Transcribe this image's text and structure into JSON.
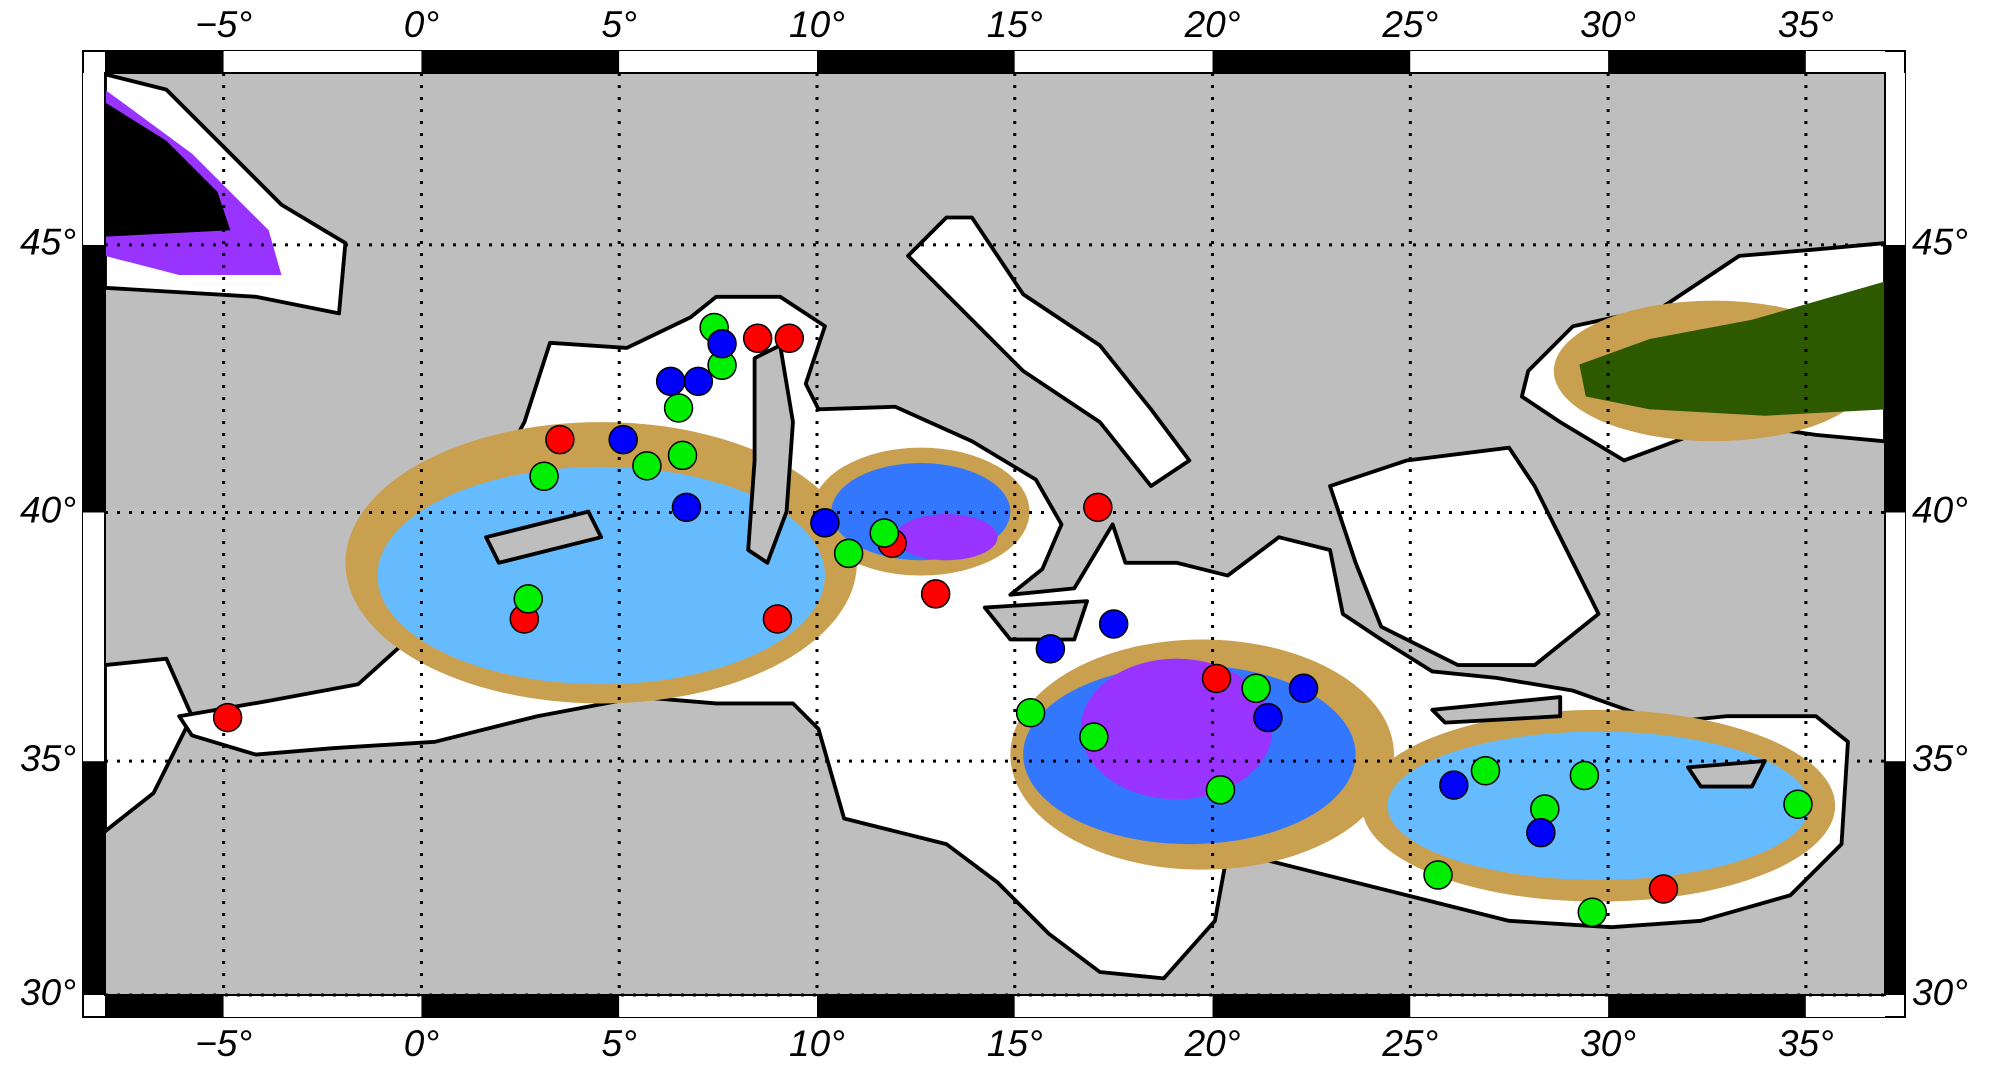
{
  "chart_data": {
    "type": "scatter",
    "projection": "mercator",
    "xlim": [
      -8,
      37
    ],
    "ylim": [
      30,
      48
    ],
    "xticks": [
      {
        "value": -5,
        "label": "−5°"
      },
      {
        "value": 0,
        "label": "0°"
      },
      {
        "value": 5,
        "label": "5°"
      },
      {
        "value": 10,
        "label": "10°"
      },
      {
        "value": 15,
        "label": "15°"
      },
      {
        "value": 20,
        "label": "20°"
      },
      {
        "value": 25,
        "label": "25°"
      },
      {
        "value": 30,
        "label": "30°"
      },
      {
        "value": 35,
        "label": "35°"
      }
    ],
    "yticks": [
      {
        "value": 30,
        "label": "30°"
      },
      {
        "value": 35,
        "label": "35°"
      },
      {
        "value": 40,
        "label": "40°"
      },
      {
        "value": 45,
        "label": "45°"
      }
    ],
    "grid": true,
    "series": [
      {
        "color": "#ff0000",
        "x": [
          -4.9,
          2.6,
          3.5,
          8.5,
          9.3,
          9.0,
          11.9,
          13.0,
          17.1,
          20.1,
          31.4
        ],
        "values": [
          35.9,
          37.9,
          41.4,
          43.3,
          43.3,
          37.9,
          39.4,
          38.4,
          40.1,
          36.7,
          32.3
        ]
      },
      {
        "color": "#00ee00",
        "x": [
          7.4,
          7.6,
          6.5,
          6.6,
          5.7,
          3.1,
          2.7,
          10.8,
          11.7,
          15.4,
          17.0,
          20.2,
          21.1,
          25.7,
          26.9,
          28.4,
          29.4,
          29.6,
          34.8
        ],
        "values": [
          43.5,
          42.8,
          42.0,
          41.1,
          40.9,
          40.7,
          38.3,
          39.2,
          39.6,
          36.0,
          35.5,
          34.4,
          36.5,
          32.6,
          34.8,
          34.0,
          34.7,
          31.8,
          34.1
        ]
      },
      {
        "color": "#0000ff",
        "x": [
          7.6,
          6.3,
          7.0,
          5.1,
          6.7,
          10.2,
          15.9,
          17.5,
          21.4,
          22.3,
          26.1,
          28.3
        ],
        "values": [
          43.2,
          42.5,
          42.5,
          41.4,
          40.1,
          39.8,
          37.3,
          37.8,
          35.9,
          36.5,
          34.5,
          33.5
        ]
      }
    ]
  }
}
